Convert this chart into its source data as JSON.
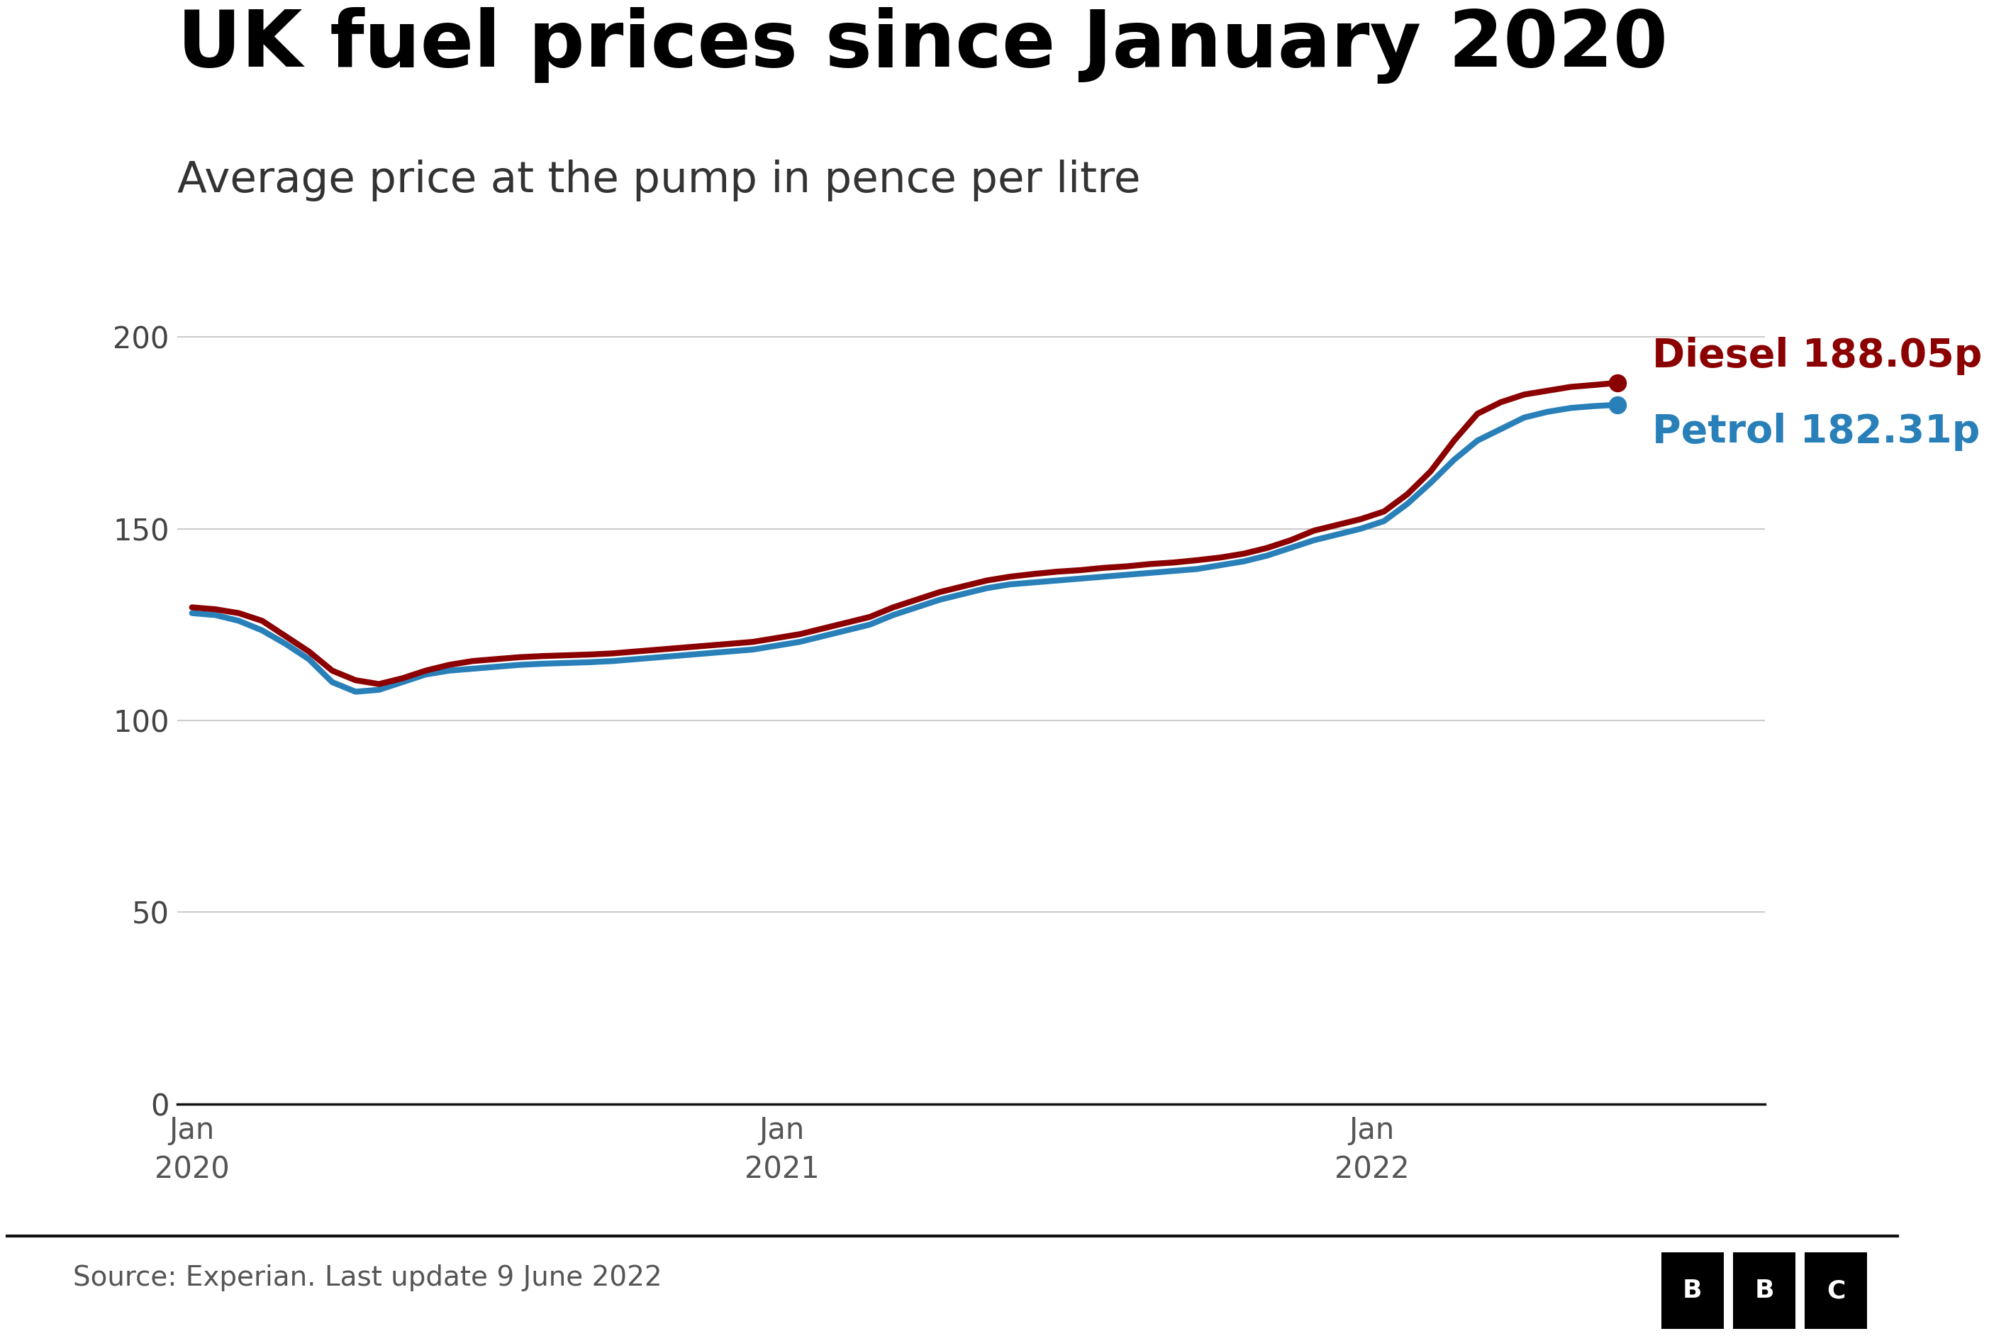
{
  "title": "UK fuel prices since January 2020",
  "subtitle": "Average price at the pump in pence per litre",
  "source": "Source: Experian. Last update 9 June 2022",
  "diesel_label": "Diesel 188.05p",
  "petrol_label": "Petrol 182.31p",
  "diesel_color": "#8B0000",
  "petrol_color": "#2980B9",
  "background_color": "#ffffff",
  "title_color": "#000000",
  "source_color": "#555555",
  "ylim": [
    0,
    210
  ],
  "yticks": [
    0,
    50,
    100,
    150,
    200
  ],
  "grid_color": "#cccccc",
  "line_width": 6,
  "dot_size": 300,
  "diesel_values": [
    129.5,
    129.0,
    128.0,
    126.0,
    122.0,
    118.0,
    113.0,
    110.5,
    109.5,
    111.0,
    113.0,
    114.5,
    115.5,
    116.0,
    116.5,
    116.8,
    117.0,
    117.2,
    117.5,
    118.0,
    118.5,
    119.0,
    119.5,
    120.0,
    120.5,
    121.5,
    122.5,
    124.0,
    125.5,
    127.0,
    129.5,
    131.5,
    133.5,
    135.0,
    136.5,
    137.5,
    138.2,
    138.8,
    139.2,
    139.8,
    140.2,
    140.8,
    141.2,
    141.8,
    142.5,
    143.5,
    145.0,
    147.0,
    149.5,
    151.0,
    152.5,
    154.5,
    159.0,
    165.0,
    173.0,
    180.0,
    183.0,
    185.0,
    186.0,
    187.0,
    187.5,
    188.05
  ],
  "petrol_values": [
    128.0,
    127.5,
    126.0,
    123.5,
    120.0,
    116.0,
    110.0,
    107.5,
    108.0,
    110.0,
    112.0,
    113.0,
    113.5,
    114.0,
    114.5,
    114.8,
    115.0,
    115.2,
    115.5,
    116.0,
    116.5,
    117.0,
    117.5,
    118.0,
    118.5,
    119.5,
    120.5,
    122.0,
    123.5,
    125.0,
    127.5,
    129.5,
    131.5,
    133.0,
    134.5,
    135.5,
    136.0,
    136.5,
    137.0,
    137.5,
    138.0,
    138.5,
    139.0,
    139.5,
    140.5,
    141.5,
    143.0,
    145.0,
    147.0,
    148.5,
    150.0,
    152.0,
    156.5,
    162.0,
    168.0,
    173.0,
    176.0,
    179.0,
    180.5,
    181.5,
    182.0,
    182.31
  ]
}
